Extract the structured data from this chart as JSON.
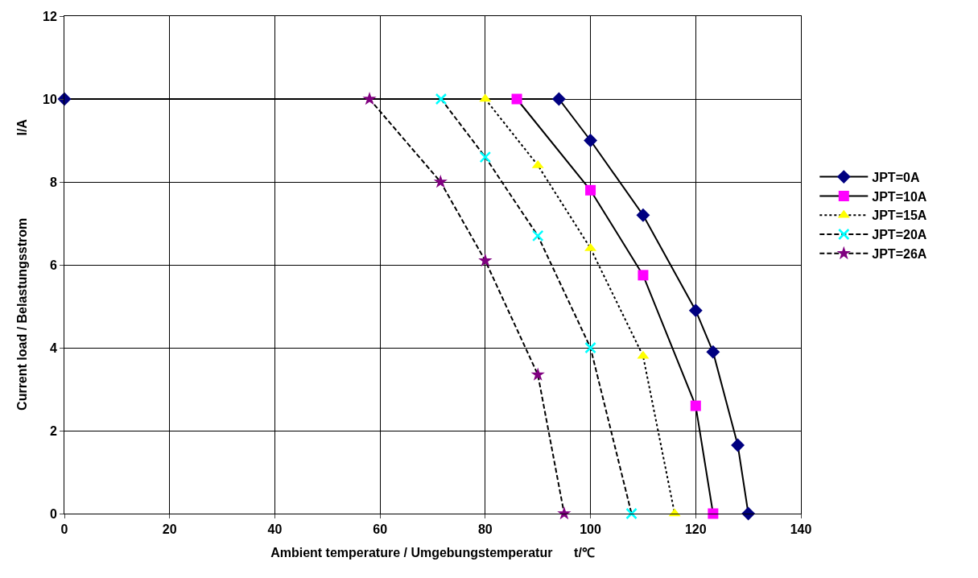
{
  "chart_data": {
    "type": "line",
    "xlabel": "Ambient temperature / Umgebungstemperatur      t/℃",
    "ylabel": "Current load / Belastungsstrom                       I/A",
    "xlim": [
      0,
      140
    ],
    "xticks": [
      0,
      20,
      40,
      60,
      80,
      100,
      120,
      140
    ],
    "ylim": [
      0,
      12
    ],
    "yticks": [
      0,
      2,
      4,
      6,
      8,
      10,
      12
    ],
    "grid": true,
    "legend": "right",
    "series": [
      {
        "name": "JPT=0A",
        "color": "#000080",
        "marker": "diamond",
        "line_style": "solid",
        "x": [
          0,
          94,
          100,
          110,
          120,
          123.3,
          128,
          130
        ],
        "values": [
          10,
          10,
          9,
          7.2,
          4.9,
          3.9,
          1.65,
          0
        ]
      },
      {
        "name": "JPT=10A",
        "color": "#ff00ff",
        "marker": "square",
        "line_style": "solid",
        "x": [
          86,
          100,
          110,
          120,
          123.3
        ],
        "values": [
          10,
          7.8,
          5.75,
          2.6,
          0
        ]
      },
      {
        "name": "JPT=15A",
        "color": "#ffff00",
        "marker": "triangle",
        "line_style": "dotted",
        "x": [
          80,
          90,
          100,
          110,
          116
        ],
        "values": [
          10,
          8.4,
          6.4,
          3.8,
          0
        ]
      },
      {
        "name": "JPT=20A",
        "color": "#00ffff",
        "marker": "cross",
        "line_style": "dashed",
        "x": [
          71.6,
          80,
          90,
          100,
          107.8
        ],
        "values": [
          10,
          8.6,
          6.7,
          4,
          0
        ]
      },
      {
        "name": "JPT=26A",
        "color": "#800080",
        "marker": "star",
        "line_style": "dashed",
        "x": [
          58,
          71.5,
          80,
          90,
          95
        ],
        "values": [
          10,
          8,
          6.1,
          3.35,
          0
        ]
      }
    ]
  }
}
